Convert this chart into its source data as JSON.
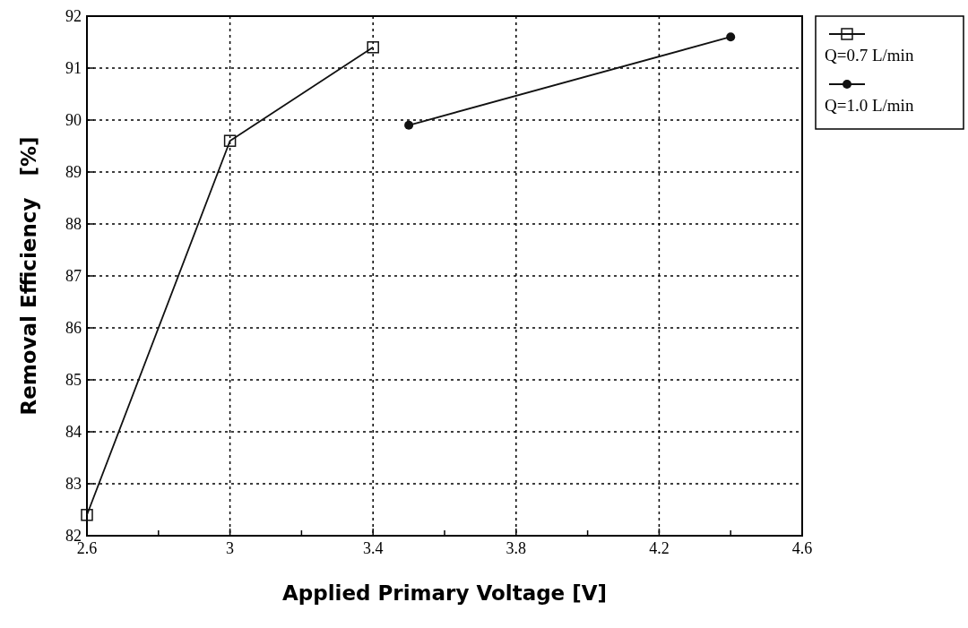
{
  "chart_data": {
    "type": "line",
    "xlabel": "Applied Primary Voltage [V]",
    "ylabel": "Removal Efficiency   [%]",
    "xlim": [
      2.6,
      4.6
    ],
    "xticks": [
      2.6,
      3,
      3.4,
      3.8,
      4.2,
      4.6
    ],
    "ylim": [
      82,
      92
    ],
    "yticks": [
      82,
      83,
      84,
      85,
      86,
      87,
      88,
      89,
      90,
      91,
      92
    ],
    "grid": true,
    "legend": "top right",
    "line_style": "solid",
    "series": [
      {
        "name": "Q=0.7 L/min",
        "color": "#111111",
        "marker": "square",
        "x": [
          2.6,
          3.0,
          3.4
        ],
        "values": [
          82.4,
          89.6,
          91.4
        ]
      },
      {
        "name": "Q=1.0 L/min",
        "color": "#111111",
        "marker": "circle",
        "x": [
          3.5,
          4.4
        ],
        "values": [
          89.9,
          91.6
        ]
      }
    ]
  }
}
